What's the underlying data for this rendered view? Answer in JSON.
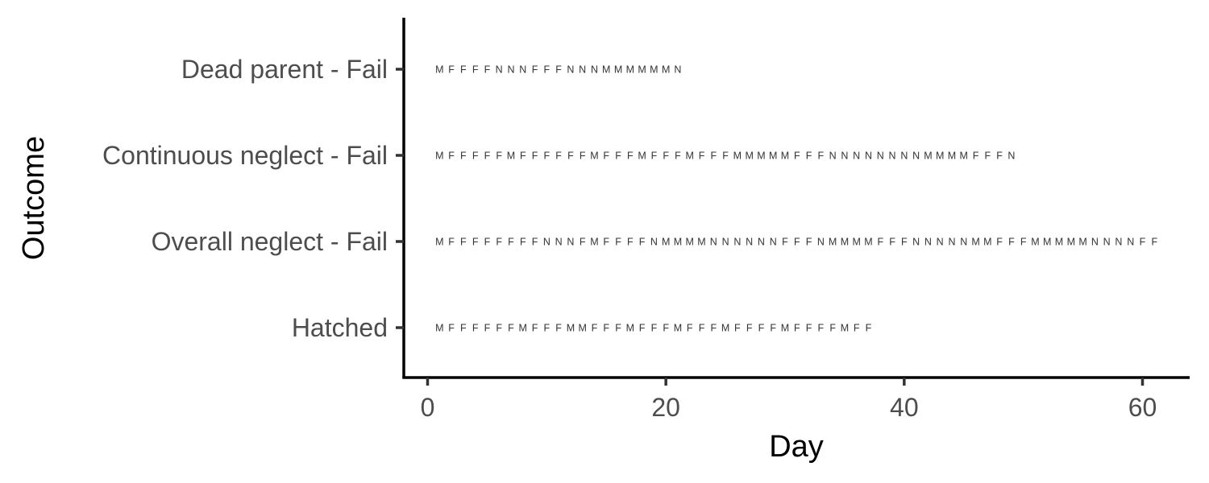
{
  "chart_data": {
    "type": "scatter",
    "title": "",
    "xlabel": "Day",
    "ylabel": "Outcome",
    "xlim": [
      -2,
      64
    ],
    "xticks": [
      "0",
      "20",
      "40",
      "60"
    ],
    "xtick_values": [
      0,
      20,
      40,
      60
    ],
    "categories": [
      "Hatched",
      "Overall neglect - Fail",
      "Continuous neglect - Fail",
      "Dead parent - Fail"
    ],
    "sequences": [
      "MFFFFFFMFFFMMFFFMFFFMFFFMFFFFMFFFFMFF",
      "MFFFFFFFFNNNFMFFFFNMMMMNNNNNNFFFNMMMMFFFNNNNNMMFFFMMMMMNNNNFF",
      "MFFFFFMFFFFFFMFFFMFFFMFFFMMMMMFFFNNNNNNNNMMMMFFFN",
      "MFFFFNNNFFFNNNMMMMMMN"
    ],
    "grid": false,
    "legend": "none"
  }
}
